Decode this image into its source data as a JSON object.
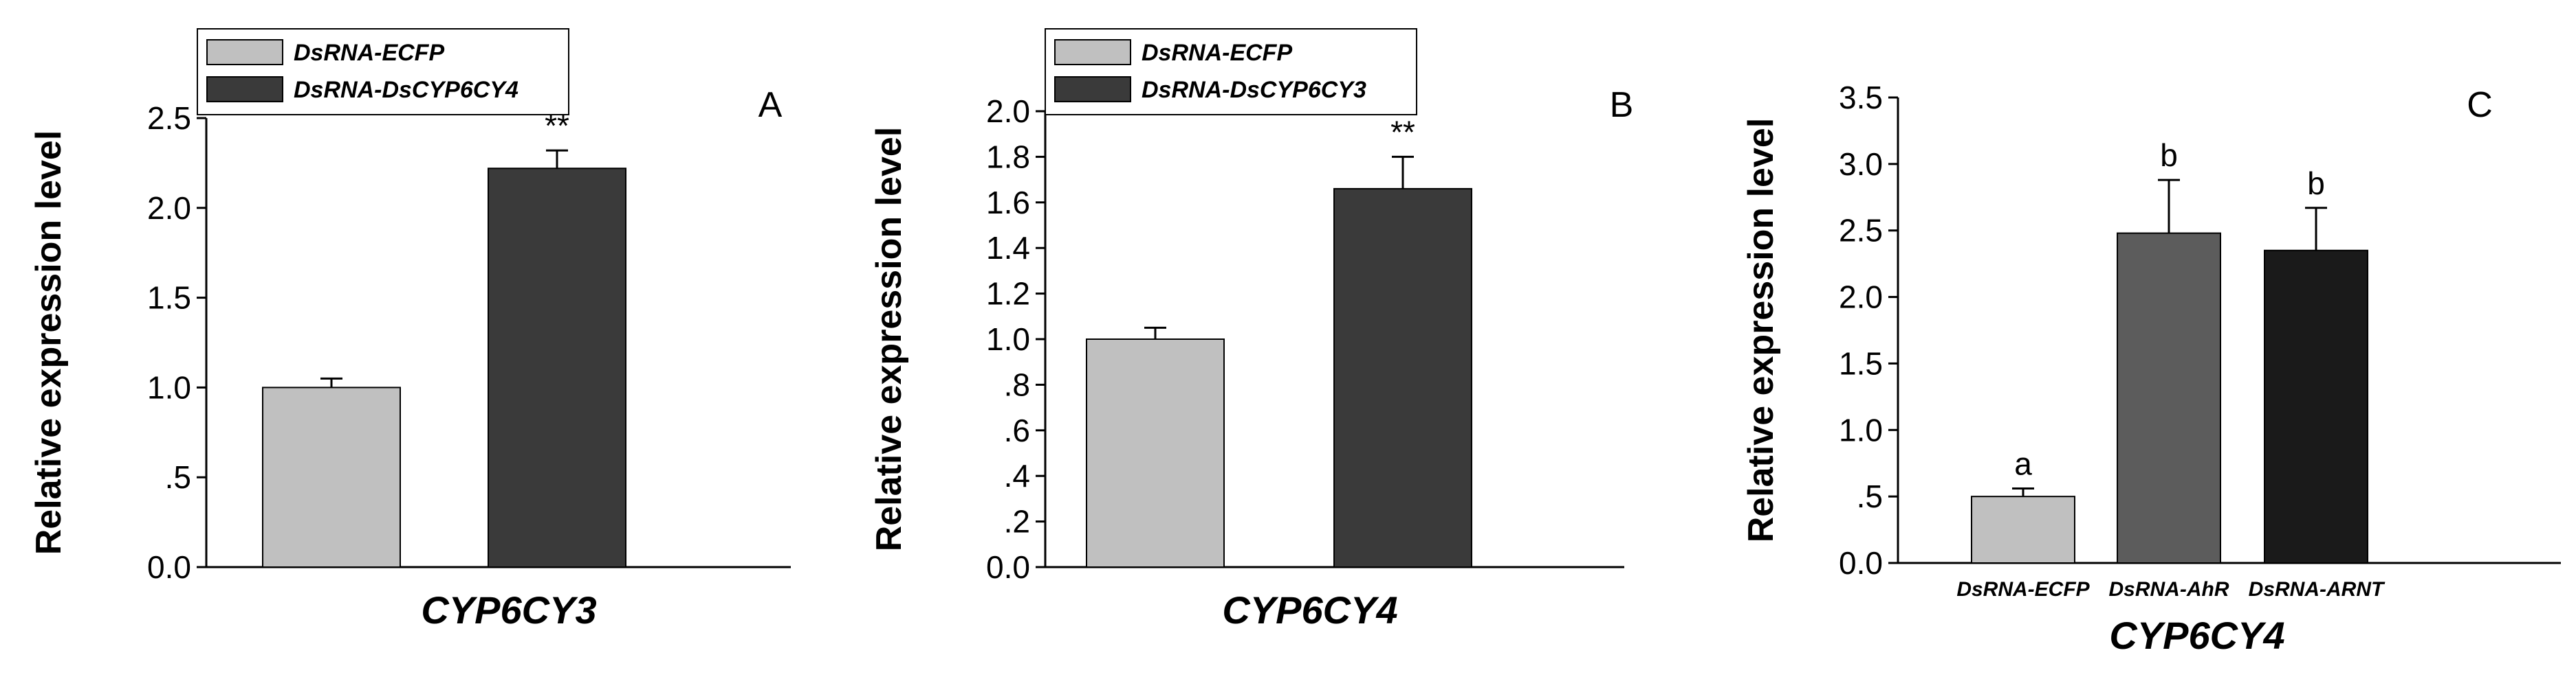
{
  "chart_data": [
    {
      "type": "bar",
      "panel": "A",
      "categories": [],
      "xlabel": "CYP6CY3",
      "ylabel": "Relative expression level",
      "ylim": [
        0,
        2.5
      ],
      "yticks": [
        "0.0",
        ".5",
        "1.0",
        "1.5",
        "2.0",
        "2.5"
      ],
      "legend": [
        "DsRNA-ECFP",
        "DsRNA-DsCYP6CY4"
      ],
      "legend_position": "top-left",
      "series": [
        {
          "name": "DsRNA-ECFP",
          "value": 1.0,
          "error": 0.05,
          "color": "#c0c0c0",
          "annotation": ""
        },
        {
          "name": "DsRNA-DsCYP6CY4",
          "value": 2.22,
          "error": 0.1,
          "color": "#3a3a3a",
          "annotation": "**"
        }
      ],
      "grid": false
    },
    {
      "type": "bar",
      "panel": "B",
      "categories": [],
      "xlabel": "CYP6CY4",
      "ylabel": "Relative expression level",
      "ylim": [
        0,
        2.0
      ],
      "yticks": [
        "0.0",
        ".2",
        ".4",
        ".6",
        ".8",
        "1.0",
        "1.2",
        "1.4",
        "1.6",
        "1.8",
        "2.0"
      ],
      "legend": [
        "DsRNA-ECFP",
        "DsRNA-DsCYP6CY3"
      ],
      "legend_position": "top-left",
      "series": [
        {
          "name": "DsRNA-ECFP",
          "value": 1.0,
          "error": 0.05,
          "color": "#c0c0c0",
          "annotation": ""
        },
        {
          "name": "DsRNA-DsCYP6CY3",
          "value": 1.66,
          "error": 0.14,
          "color": "#3a3a3a",
          "annotation": "**"
        }
      ],
      "grid": false
    },
    {
      "type": "bar",
      "panel": "C",
      "categories": [
        "DsRNA-ECFP",
        "DsRNA-AhR",
        "DsRNA-ARNT"
      ],
      "xlabel": "CYP6CY4",
      "ylabel": "Relative expression level",
      "ylim": [
        0,
        3.5
      ],
      "yticks": [
        "0.0",
        ".5",
        "1.0",
        "1.5",
        "2.0",
        "2.5",
        "3.0",
        "3.5"
      ],
      "legend": [],
      "series": [
        {
          "name": "DsRNA-ECFP",
          "value": 0.5,
          "error": 0.06,
          "color": "#c0c0c0",
          "annotation": "a"
        },
        {
          "name": "DsRNA-AhR",
          "value": 2.48,
          "error": 0.4,
          "color": "#5c5c5c",
          "annotation": "b"
        },
        {
          "name": "DsRNA-ARNT",
          "value": 2.35,
          "error": 0.32,
          "color": "#1a1a1a",
          "annotation": "b"
        }
      ],
      "grid": false
    }
  ]
}
